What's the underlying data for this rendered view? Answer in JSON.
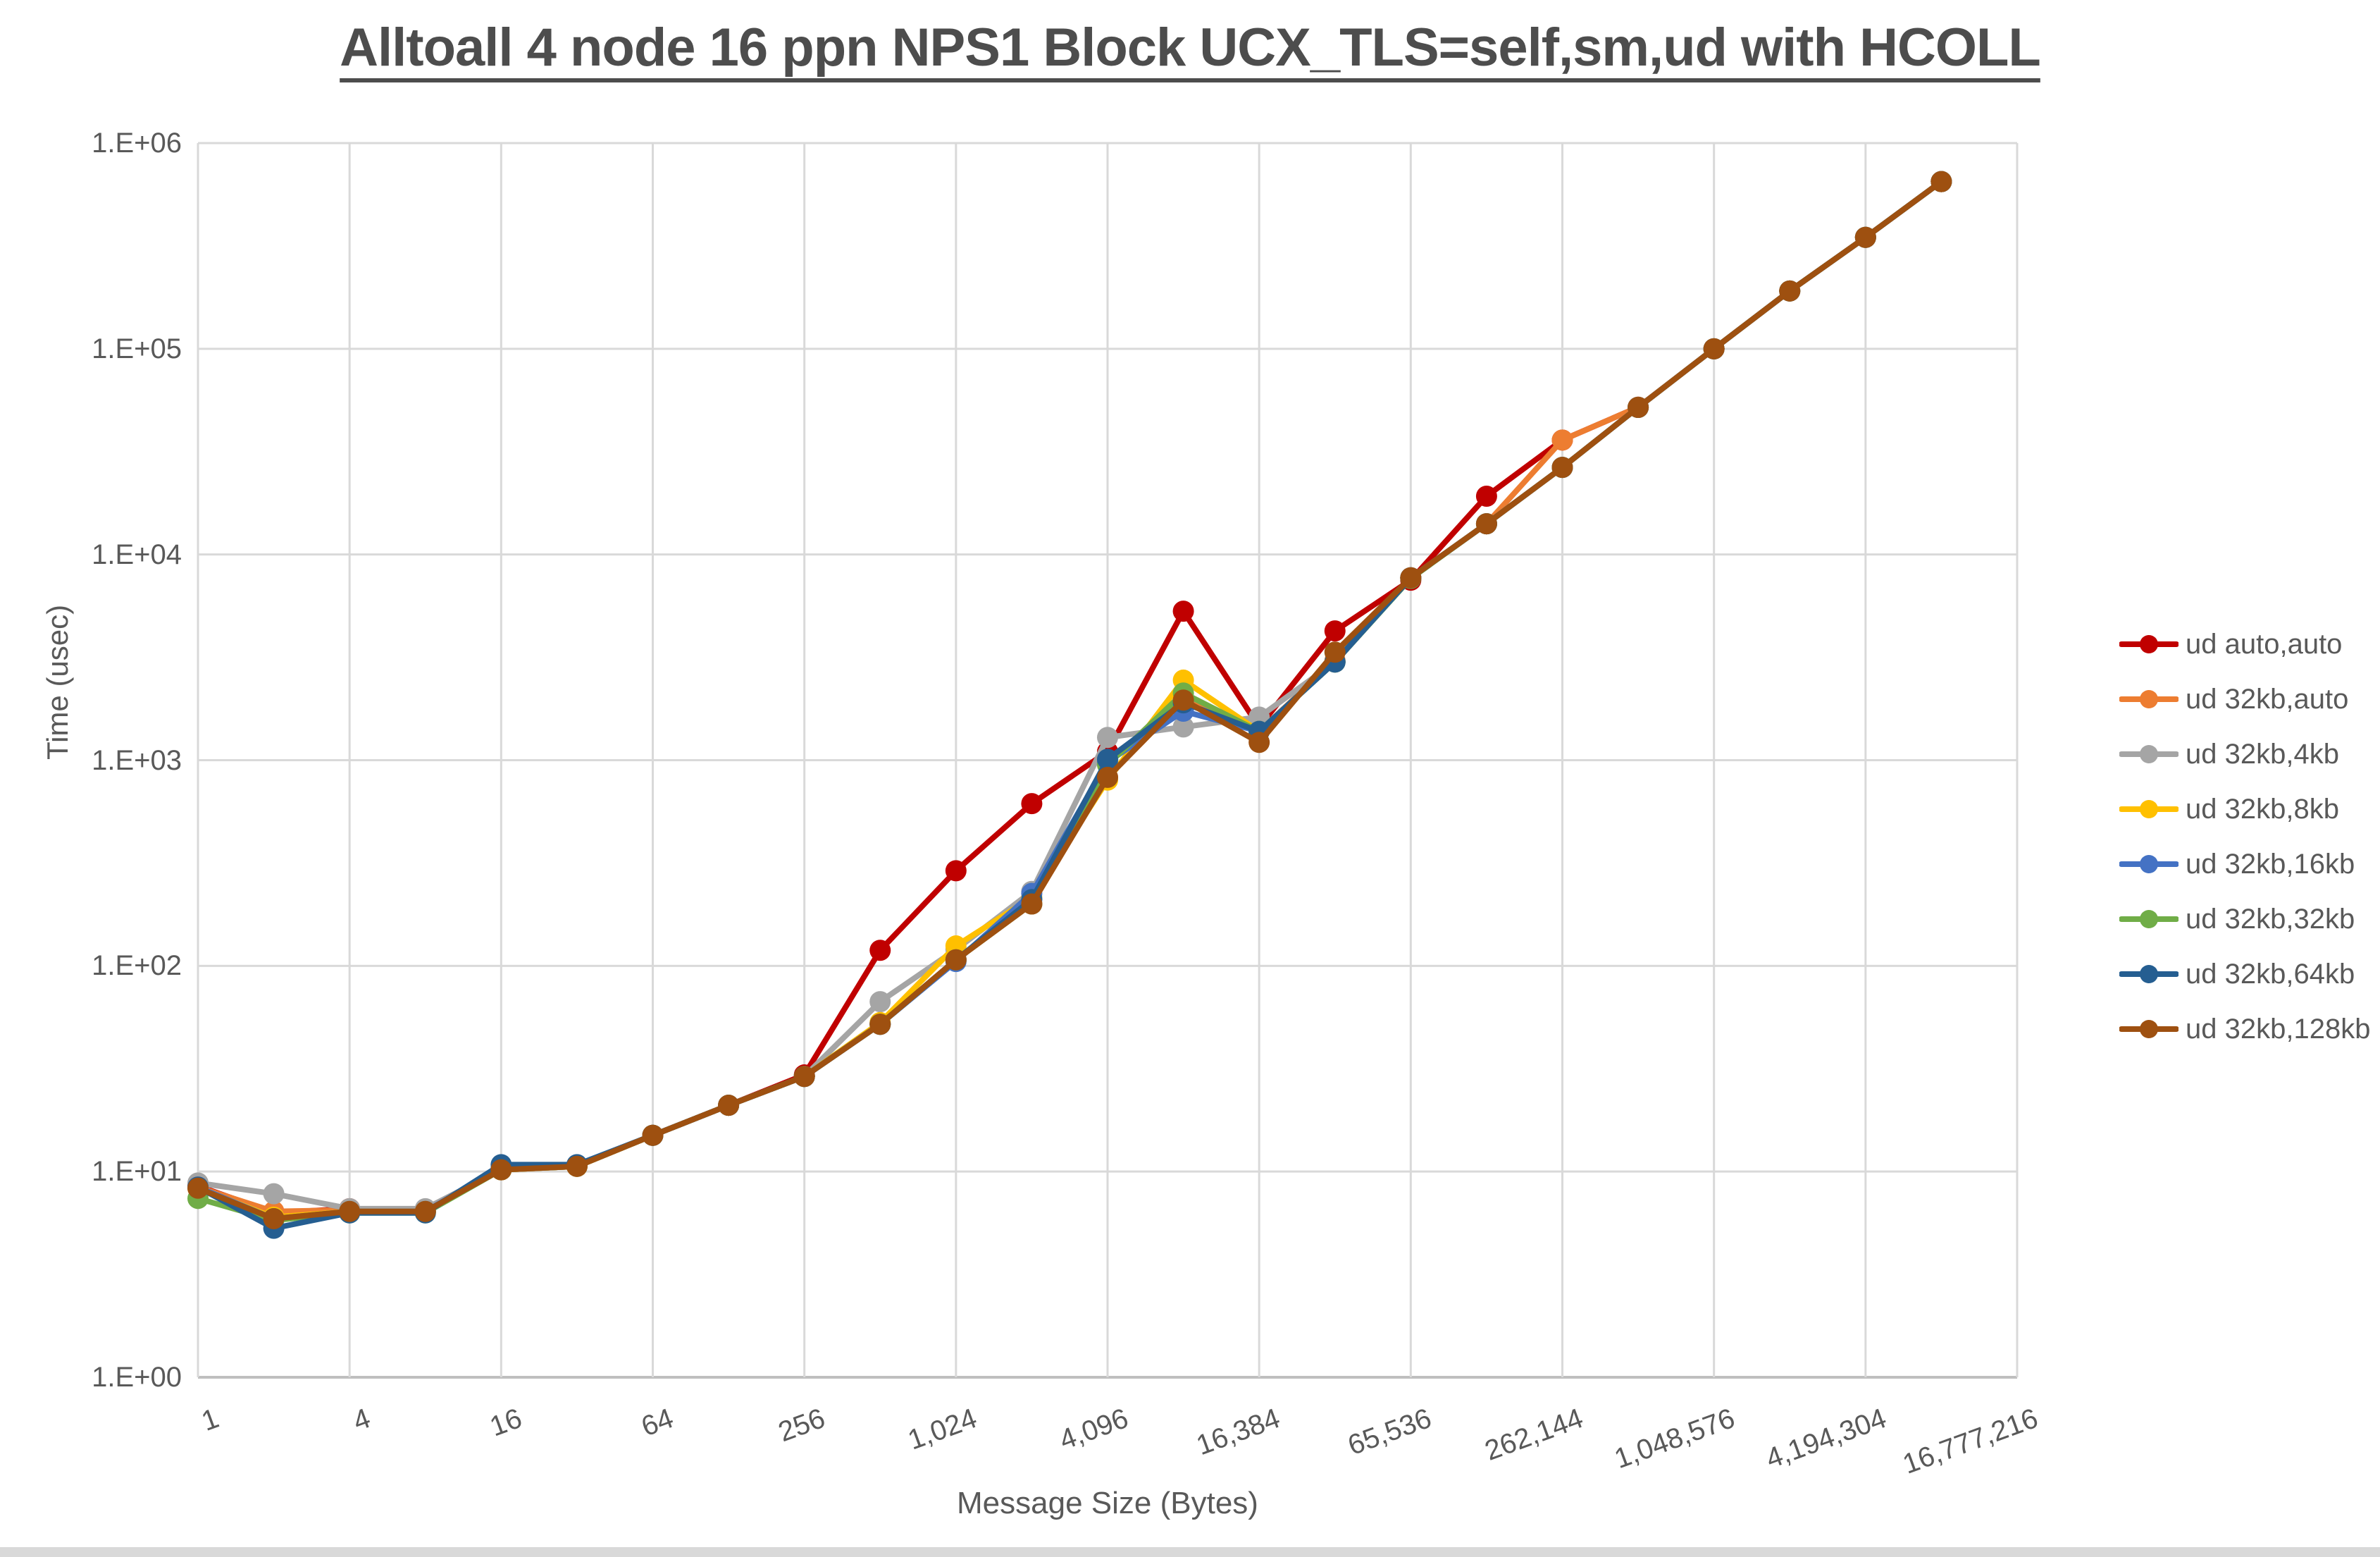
{
  "chart_data": {
    "type": "line",
    "title": "Alltoall 4 node 16 ppn NPS1 Block UCX_TLS=self,sm,ud with HCOLL",
    "xlabel": "Message Size (Bytes)",
    "ylabel": "Time (usec)",
    "x_scale": "log2",
    "y_scale": "log10",
    "ylim": [
      1,
      1000000
    ],
    "grid": true,
    "legend_position": "right",
    "x": [
      1,
      2,
      4,
      8,
      16,
      32,
      64,
      128,
      256,
      512,
      1024,
      2048,
      4096,
      8192,
      16384,
      32768,
      65536,
      131072,
      262144,
      524288,
      1048576,
      2097152,
      4194304,
      8388608
    ],
    "x_tick_labels": [
      "1",
      "4",
      "16",
      "64",
      "256",
      "1,024",
      "4,096",
      "16,384",
      "65,536",
      "262,144",
      "1,048,576",
      "4,194,304",
      "16,777,216"
    ],
    "y_tick_labels": [
      "1.E+00",
      "1.E+01",
      "1.E+02",
      "1.E+03",
      "1.E+04",
      "1.E+05",
      "1.E+06"
    ],
    "series": [
      {
        "name": "ud auto,auto",
        "color": "#C00000",
        "values": [
          8.5,
          6.3,
          6.6,
          6.5,
          10.3,
          10.6,
          15,
          21,
          29.5,
          119,
          290,
          615,
          1100,
          5300,
          1450,
          4250,
          7500,
          19200,
          36000,
          52000,
          100000,
          191000,
          348000,
          650000
        ]
      },
      {
        "name": "ud 32kb,auto",
        "color": "#ED7D31",
        "values": [
          8.4,
          6.4,
          6.5,
          6.4,
          10.2,
          10.6,
          15,
          21,
          29,
          52,
          107,
          200,
          825,
          1960,
          1380,
          3050,
          7700,
          14100,
          36000,
          52000,
          100000,
          191000,
          348000,
          650000
        ]
      },
      {
        "name": "ud 32kb,4kb",
        "color": "#A5A5A5",
        "values": [
          8.8,
          7.8,
          6.6,
          6.6,
          10.2,
          10.6,
          15,
          21,
          29,
          67,
          120,
          230,
          1290,
          1450,
          1620,
          3000,
          7700,
          14100,
          26500,
          51900,
          100000,
          191000,
          348000,
          650000
        ]
      },
      {
        "name": "ud 32kb,8kb",
        "color": "#FFC000",
        "values": [
          8.3,
          6.0,
          6.4,
          6.4,
          10.2,
          10.6,
          15,
          21,
          29,
          53,
          125,
          215,
          800,
          2450,
          1380,
          3000,
          7700,
          14100,
          26500,
          51900,
          100000,
          191000,
          348000,
          650000
        ]
      },
      {
        "name": "ud 32kb,16kb",
        "color": "#4472C4",
        "values": [
          8.4,
          5.9,
          6.4,
          6.4,
          10.4,
          10.7,
          15,
          21,
          29,
          52,
          105,
          225,
          980,
          1730,
          1380,
          3000,
          7700,
          14100,
          26500,
          51900,
          100000,
          191000,
          348000,
          650000
        ]
      },
      {
        "name": "ud 32kb,32kb",
        "color": "#70AD47",
        "values": [
          7.4,
          5.8,
          6.3,
          6.3,
          10.2,
          10.6,
          15,
          21,
          29,
          52,
          107,
          200,
          950,
          2120,
          1380,
          3000,
          7650,
          14100,
          26500,
          51900,
          100000,
          191000,
          348000,
          650000
        ]
      },
      {
        "name": "ud 32kb,64kb",
        "color": "#255E91",
        "values": [
          8.4,
          5.3,
          6.3,
          6.3,
          10.8,
          10.8,
          15,
          21,
          29,
          52,
          107,
          210,
          1010,
          1900,
          1380,
          3000,
          7700,
          14100,
          26500,
          51900,
          100000,
          191000,
          348000,
          650000
        ]
      },
      {
        "name": "ud 32kb,128kb",
        "color": "#9E5010",
        "values": [
          8.3,
          5.9,
          6.4,
          6.4,
          10.2,
          10.6,
          15,
          21,
          29,
          52,
          107,
          200,
          825,
          1960,
          1220,
          3350,
          7700,
          14100,
          26500,
          51900,
          100000,
          191000,
          348000,
          650000
        ]
      }
    ]
  },
  "colors": {
    "background": "#FFFFFF",
    "gridline": "#D9D9D9",
    "axis_line": "#BFBFBF",
    "tick_text": "#595959",
    "title_text": "#4D4D4D",
    "bottom_strip": "#D9D9D9"
  }
}
